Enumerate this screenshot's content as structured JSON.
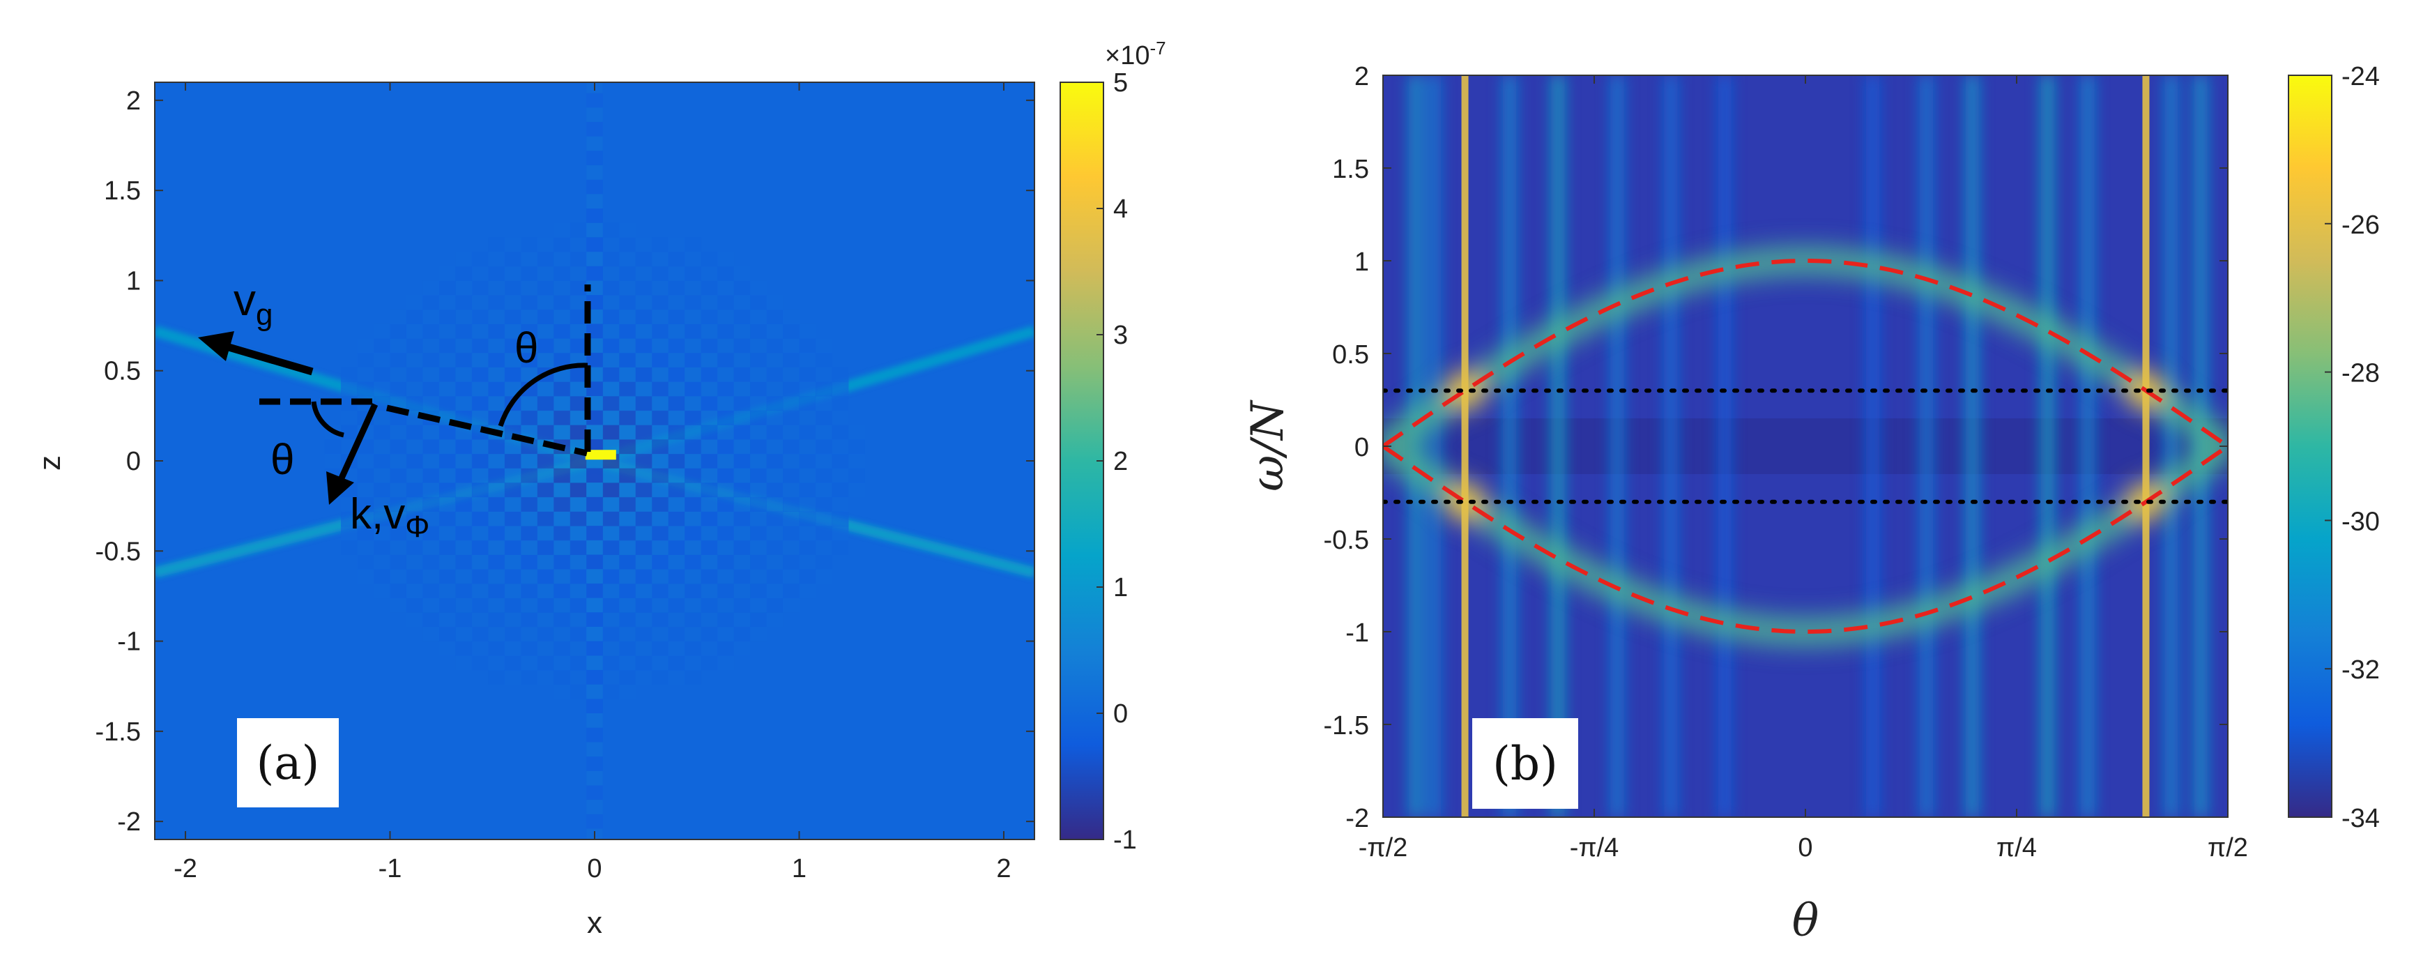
{
  "chart_data": [
    {
      "id": "a",
      "type": "heatmap",
      "panel_label": "(a)",
      "xlabel": "x",
      "ylabel": "z",
      "xlim": [
        -2.15,
        2.15
      ],
      "ylim": [
        -2.1,
        2.1
      ],
      "xticks": [
        -2,
        -1,
        0,
        1,
        2
      ],
      "xtick_labels": [
        "-2",
        "-1",
        "0",
        "1",
        "2"
      ],
      "yticks": [
        2,
        1.5,
        1,
        0.5,
        0,
        -0.5,
        -1,
        -1.5,
        -2
      ],
      "ytick_labels": [
        "2",
        "1.5",
        "1",
        "0.5",
        "0",
        "-0.5",
        "-1",
        "-1.5",
        "-2"
      ],
      "colorbar": {
        "range": [
          -1,
          5
        ],
        "ticks": [
          5,
          4,
          3,
          2,
          1,
          0,
          -1
        ],
        "tick_labels": [
          "5",
          "4",
          "3",
          "2",
          "1",
          "0",
          "-1"
        ],
        "exponent_label": "×10",
        "exponent": "-7",
        "colormap": "parula"
      },
      "background_value": -0.05,
      "source_point": {
        "x": 0.03,
        "z": 0.03,
        "value": 5
      },
      "beams": [
        {
          "from": [
            0,
            0
          ],
          "to": [
            -2.15,
            0.72
          ],
          "value": 1.2
        },
        {
          "from": [
            0,
            0
          ],
          "to": [
            2.15,
            0.72
          ],
          "value": 1.2
        },
        {
          "from": [
            0,
            0
          ],
          "to": [
            -2.15,
            -0.62
          ],
          "value": 1.3
        },
        {
          "from": [
            0,
            0
          ],
          "to": [
            2.15,
            -0.62
          ],
          "value": 1.3
        }
      ],
      "annotations": {
        "vg_label": "v",
        "vg_sub": "g",
        "theta": "θ",
        "k_label": "k,v",
        "k_sub": "Φ"
      }
    },
    {
      "id": "b",
      "type": "heatmap",
      "panel_label": "(b)",
      "xlabel": "θ",
      "ylabel": "ω/N",
      "xlim": [
        -1.5708,
        1.5708
      ],
      "ylim": [
        -2,
        2
      ],
      "xticks": [
        -1.5708,
        -0.7854,
        0,
        0.7854,
        1.5708
      ],
      "xtick_labels": [
        "-π/2",
        "-π/4",
        "0",
        "π/4",
        "π/2"
      ],
      "yticks": [
        2,
        1.5,
        1,
        0.5,
        0,
        -0.5,
        -1,
        -1.5,
        -2
      ],
      "ytick_labels": [
        "2",
        "1.5",
        "1",
        "0.5",
        "0",
        "-0.5",
        "-1",
        "-1.5",
        "-2"
      ],
      "colorbar": {
        "range": [
          -34,
          -24
        ],
        "ticks": [
          -24,
          -26,
          -28,
          -30,
          -32,
          -34
        ],
        "tick_labels": [
          "-24",
          "-26",
          "-28",
          "-30",
          "-32",
          "-34"
        ],
        "colormap": "parula"
      },
      "dispersion_curves": {
        "equation": "omega/N = ±cos(theta)",
        "color": "#e8231c",
        "style": "dashed"
      },
      "forcing_lines": {
        "omega_over_N": [
          0.3,
          -0.3
        ],
        "color": "#000000",
        "style": "dotted"
      },
      "bright_theta_lines": [
        -1.2661,
        1.2661
      ],
      "stripes": [
        {
          "theta": -1.45,
          "value": -30.5
        },
        {
          "theta": -1.38,
          "value": -31.5
        },
        {
          "theta": -1.1,
          "value": -31
        },
        {
          "theta": -0.92,
          "value": -30
        },
        {
          "theta": -0.7,
          "value": -31.5
        },
        {
          "theta": -0.5,
          "value": -32
        },
        {
          "theta": -0.3,
          "value": -32.5
        },
        {
          "theta": 0.25,
          "value": -32.5
        },
        {
          "theta": 0.45,
          "value": -31.5
        },
        {
          "theta": 0.62,
          "value": -30.5
        },
        {
          "theta": 0.9,
          "value": -30
        },
        {
          "theta": 1.05,
          "value": -31
        },
        {
          "theta": 1.36,
          "value": -31
        },
        {
          "theta": 1.47,
          "value": -30.5
        }
      ]
    }
  ]
}
